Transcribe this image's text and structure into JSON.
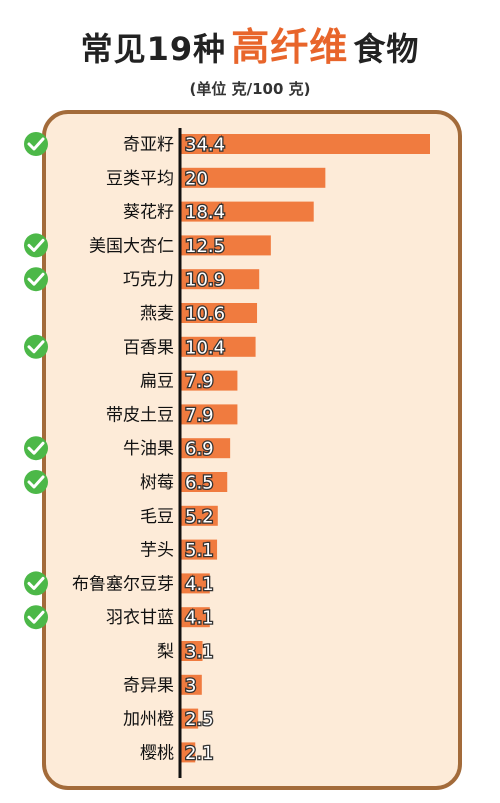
{
  "title": {
    "part1": "常见19种",
    "highlight": "高纤维",
    "part2": "食物"
  },
  "subtitle": "(单位 克/100 克)",
  "colors": {
    "bar": "#f07b3f",
    "check": "#4cb848",
    "highlight": "#e8652b",
    "panel_bg": "#fdebd8",
    "panel_border": "#a36b3a",
    "axis": "#111111"
  },
  "chart_data": {
    "type": "bar",
    "orientation": "horizontal",
    "unit": "克/100 克",
    "categories": [
      "奇亚籽",
      "豆类平均",
      "葵花籽",
      "美国大杏仁",
      "巧克力",
      "燕麦",
      "百香果",
      "扁豆",
      "带皮土豆",
      "牛油果",
      "树莓",
      "毛豆",
      "芋头",
      "布鲁塞尔豆芽",
      "羽衣甘蓝",
      "梨",
      "奇异果",
      "加州橙",
      "樱桃"
    ],
    "values": [
      34.4,
      20,
      18.4,
      12.5,
      10.9,
      10.6,
      10.4,
      7.9,
      7.9,
      6.9,
      6.5,
      5.2,
      5.1,
      4.1,
      4.1,
      3.1,
      3,
      2.5,
      2.1
    ],
    "labels": [
      "34.4",
      "20",
      "18.4",
      "12.5",
      "10.9",
      "10.6",
      "10.4",
      "7.9",
      "7.9",
      "6.9",
      "6.5",
      "5.2",
      "5.1",
      "4.1",
      "4.1",
      "3.1",
      "3",
      "2.5",
      "2.1"
    ],
    "checked": [
      true,
      false,
      false,
      true,
      true,
      false,
      true,
      false,
      false,
      true,
      true,
      false,
      false,
      true,
      true,
      false,
      false,
      false,
      false
    ],
    "xlim": [
      0,
      34.4
    ]
  }
}
